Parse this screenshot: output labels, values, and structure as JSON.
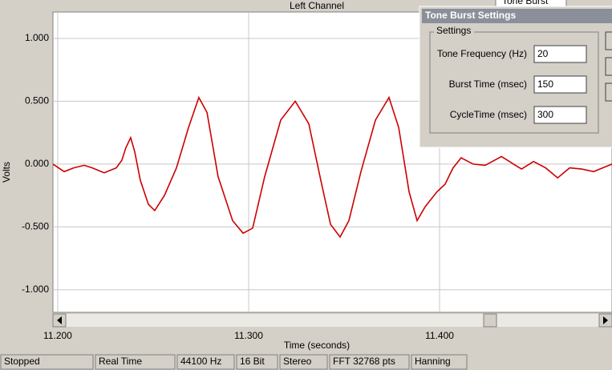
{
  "chart_data": {
    "type": "line",
    "title": "Left Channel",
    "x_label": "Time (seconds)",
    "y_label": "Volts",
    "x": [
      11.1975,
      11.2034,
      11.2084,
      11.2139,
      11.2181,
      11.2244,
      11.2307,
      11.2336,
      11.2357,
      11.2382,
      11.2403,
      11.2433,
      11.2475,
      11.2508,
      11.2559,
      11.2622,
      11.2685,
      11.2739,
      11.2782,
      11.284,
      11.2916,
      11.2971,
      11.3021,
      11.3084,
      11.3168,
      11.3244,
      11.3315,
      11.3378,
      11.3429,
      11.3479,
      11.3525,
      11.3588,
      11.3664,
      11.3735,
      11.3786,
      11.384,
      11.3882,
      11.3924,
      11.3987,
      11.4029,
      11.4071,
      11.4113,
      11.4176,
      11.4239,
      11.4324,
      11.4387,
      11.4429,
      11.4492,
      11.4555,
      11.4618,
      11.4681,
      11.4744,
      11.4807,
      11.4903
    ],
    "series": [
      {
        "color": "#cc0000",
        "values": [
          0.0,
          -0.06,
          -0.03,
          -0.01,
          -0.03,
          -0.07,
          -0.03,
          0.03,
          0.13,
          0.21,
          0.1,
          -0.13,
          -0.32,
          -0.37,
          -0.25,
          -0.03,
          0.29,
          0.53,
          0.41,
          -0.1,
          -0.45,
          -0.55,
          -0.51,
          -0.1,
          0.35,
          0.5,
          0.32,
          -0.13,
          -0.48,
          -0.58,
          -0.45,
          -0.06,
          0.35,
          0.53,
          0.29,
          -0.22,
          -0.45,
          -0.34,
          -0.22,
          -0.16,
          -0.03,
          0.05,
          0.0,
          -0.01,
          0.06,
          0.0,
          -0.04,
          0.02,
          -0.03,
          -0.11,
          -0.03,
          -0.04,
          -0.06,
          0.0
        ]
      }
    ],
    "xlim": [
      11.1975,
      11.4903
    ],
    "ylim": [
      -1.18,
      1.21
    ],
    "xticks": [
      {
        "value": 11.2,
        "label": "11.200"
      },
      {
        "value": 11.3,
        "label": "11.300"
      },
      {
        "value": 11.4,
        "label": "11.400"
      }
    ],
    "yticks": [
      {
        "value": 1,
        "label": "1.000"
      },
      {
        "value": 0.5,
        "label": "0.500"
      },
      {
        "value": 0,
        "label": "0.000"
      },
      {
        "value": -0.5,
        "label": "-0.500"
      },
      {
        "value": -1,
        "label": "-1.000"
      }
    ],
    "grid": true
  },
  "toolbar": {
    "dropdown": "Tone Burst"
  },
  "dialog": {
    "title": "Tone Burst Settings",
    "group": "Settings",
    "fields": [
      {
        "label": "Tone Frequency (Hz)",
        "value": 20
      },
      {
        "label": "Burst Time (msec)",
        "value": 150
      },
      {
        "label": "CycleTime (msec)",
        "value": 300
      }
    ]
  },
  "status_bar": [
    "Stopped",
    "Real Time",
    "44100 Hz",
    "16 Bit",
    "Stereo",
    "FFT 32768 pts",
    "Hanning"
  ]
}
